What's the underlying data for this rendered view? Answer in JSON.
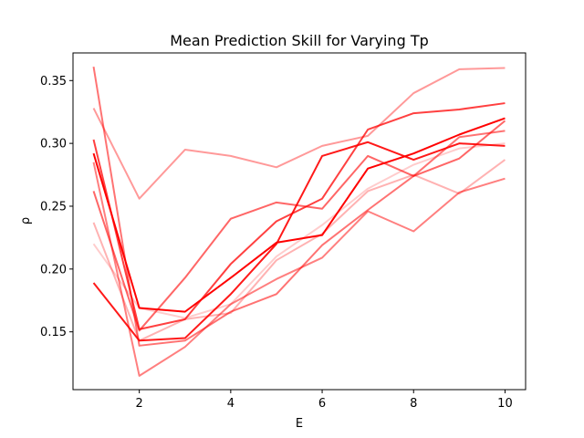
{
  "chart_data": {
    "type": "line",
    "title": "Mean Prediction Skill for Varying Tp",
    "xlabel": "E",
    "ylabel": "ρ",
    "x": [
      1,
      2,
      3,
      4,
      5,
      6,
      7,
      8,
      9,
      10
    ],
    "xlim": [
      0.55,
      10.45
    ],
    "ylim": [
      0.104,
      0.372
    ],
    "xticks": [
      2,
      4,
      6,
      8,
      10
    ],
    "xtick_labels": [
      "2",
      "4",
      "6",
      "8",
      "10"
    ],
    "yticks": [
      0.15,
      0.2,
      0.25,
      0.3,
      0.35
    ],
    "ytick_labels": [
      "0.15",
      "0.20",
      "0.25",
      "0.30",
      "0.35"
    ],
    "grid": false,
    "legend": "none",
    "series": [
      {
        "values": [
          0.361,
          0.139,
          0.143,
          0.166,
          0.18,
          0.219,
          0.247,
          0.274,
          0.305,
          0.31
        ],
        "color": "#ff0000",
        "opacity": 0.55
      },
      {
        "values": [
          0.328,
          0.256,
          0.295,
          0.29,
          0.281,
          0.298,
          0.306,
          0.34,
          0.359,
          0.36
        ],
        "color": "#ff0000",
        "opacity": 0.4
      },
      {
        "values": [
          0.303,
          0.152,
          0.16,
          0.204,
          0.238,
          0.256,
          0.311,
          0.324,
          0.327,
          0.332
        ],
        "color": "#ff0000",
        "opacity": 0.75
      },
      {
        "values": [
          0.292,
          0.169,
          0.166,
          0.193,
          0.221,
          0.227,
          0.28,
          0.292,
          0.307,
          0.32
        ],
        "color": "#ff0000",
        "opacity": 1.0
      },
      {
        "values": [
          0.285,
          0.115,
          0.138,
          0.172,
          0.192,
          0.209,
          0.246,
          0.23,
          0.261,
          0.272
        ],
        "color": "#ff0000",
        "opacity": 0.5
      },
      {
        "values": [
          0.262,
          0.151,
          0.193,
          0.24,
          0.253,
          0.248,
          0.29,
          0.274,
          0.288,
          0.318
        ],
        "color": "#ff0000",
        "opacity": 0.6
      },
      {
        "values": [
          0.237,
          0.143,
          0.16,
          0.165,
          0.207,
          0.228,
          0.262,
          0.275,
          0.26,
          0.287
        ],
        "color": "#ff0000",
        "opacity": 0.3
      },
      {
        "values": [
          0.22,
          0.169,
          0.161,
          0.172,
          0.21,
          0.235,
          0.264,
          0.283,
          0.296,
          0.3
        ],
        "color": "#ff0000",
        "opacity": 0.2
      },
      {
        "values": [
          0.189,
          0.143,
          0.145,
          0.18,
          0.22,
          0.29,
          0.301,
          0.287,
          0.3,
          0.298
        ],
        "color": "#ff0000",
        "opacity": 0.9
      }
    ]
  }
}
